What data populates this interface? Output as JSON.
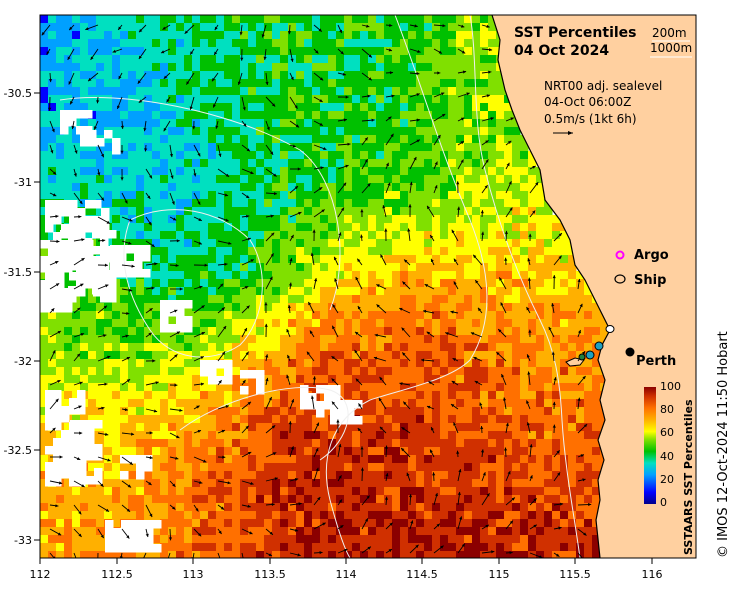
{
  "title_line1": "SST Percentiles",
  "title_line2": "04 Oct 2024",
  "depth_legend": [
    "200m",
    "1000m"
  ],
  "current_info": [
    "NRT00 adj. sealevel",
    "04-Oct 06:00Z",
    "0.5m/s (1kt 6h)"
  ],
  "legend": {
    "argo": "Argo",
    "ship": "Ship"
  },
  "city": "Perth",
  "colorbar": {
    "title": "SSTAARS SST Percentiles",
    "ticks": [
      "0",
      "20",
      "40",
      "60",
      "80",
      "100"
    ],
    "colors": [
      "#00008b",
      "#0000ff",
      "#00a0ff",
      "#00e0c0",
      "#00c000",
      "#80e000",
      "#ffff00",
      "#ffb000",
      "#ff7000",
      "#d03000",
      "#8b0000"
    ]
  },
  "x_ticks": [
    "112",
    "112.5",
    "113",
    "113.5",
    "114",
    "114.5",
    "115",
    "115.5",
    "116"
  ],
  "y_ticks": [
    "-30.5",
    "-31",
    "-31.5",
    "-32",
    "-32.5",
    "-33"
  ],
  "credit": "© IMOS 12-Oct-2024 11:50 Hobart",
  "colors": {
    "land": "#ffd0a0",
    "nodata": "#ffffff"
  }
}
